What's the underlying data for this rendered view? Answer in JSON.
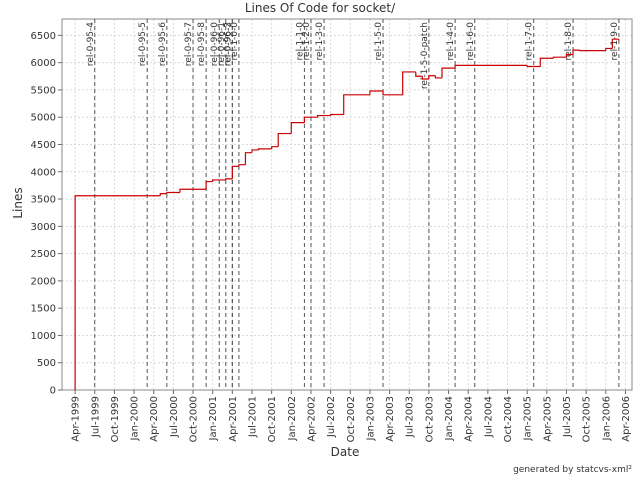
{
  "chart_data": {
    "type": "line",
    "step": true,
    "title": "Lines Of Code for socket/",
    "xlabel": "Date",
    "ylabel": "Lines",
    "footer": "generated by statcvs-xml²",
    "color": "#cc0000",
    "grid": true,
    "x": [
      "1999-04",
      "1999-04",
      "2000-05",
      "2000-06",
      "2000-08",
      "2000-12",
      "2001-01",
      "2001-03",
      "2001-04",
      "2001-05",
      "2001-06",
      "2001-07",
      "2001-08",
      "2001-10",
      "2001-11",
      "2002-01",
      "2002-01",
      "2002-03",
      "2002-05",
      "2002-07",
      "2002-09",
      "2003-01",
      "2003-03",
      "2003-06",
      "2003-08",
      "2003-09",
      "2003-10",
      "2003-11",
      "2003-12",
      "2004-02",
      "2005-01",
      "2005-03",
      "2005-05",
      "2005-07",
      "2005-08",
      "2005-09",
      "2006-01",
      "2006-02",
      "2006-03"
    ],
    "values": [
      0,
      3560,
      3600,
      3620,
      3680,
      3820,
      3850,
      3870,
      4100,
      4130,
      4350,
      4400,
      4420,
      4460,
      4700,
      4780,
      4900,
      5000,
      5030,
      5050,
      5410,
      5480,
      5410,
      5830,
      5750,
      5700,
      5760,
      5720,
      5900,
      5950,
      5930,
      6080,
      6100,
      6150,
      6230,
      6220,
      6260,
      6430,
      6400
    ],
    "xlim": [
      "1999-02",
      "2006-05"
    ],
    "xticks": [
      {
        "value": "1999-04",
        "label": "Apr-1999"
      },
      {
        "value": "1999-07",
        "label": "Jul-1999"
      },
      {
        "value": "1999-10",
        "label": "Oct-1999"
      },
      {
        "value": "2000-01",
        "label": "Jan-2000"
      },
      {
        "value": "2000-04",
        "label": "Apr-2000"
      },
      {
        "value": "2000-07",
        "label": "Jul-2000"
      },
      {
        "value": "2000-10",
        "label": "Oct-2000"
      },
      {
        "value": "2001-01",
        "label": "Jan-2001"
      },
      {
        "value": "2001-04",
        "label": "Apr-2001"
      },
      {
        "value": "2001-07",
        "label": "Jul-2001"
      },
      {
        "value": "2001-10",
        "label": "Oct-2001"
      },
      {
        "value": "2002-01",
        "label": "Jan-2002"
      },
      {
        "value": "2002-04",
        "label": "Apr-2002"
      },
      {
        "value": "2002-07",
        "label": "Jul-2002"
      },
      {
        "value": "2002-10",
        "label": "Oct-2002"
      },
      {
        "value": "2003-01",
        "label": "Jan-2003"
      },
      {
        "value": "2003-04",
        "label": "Apr-2003"
      },
      {
        "value": "2003-07",
        "label": "Jul-2003"
      },
      {
        "value": "2003-10",
        "label": "Oct-2003"
      },
      {
        "value": "2004-01",
        "label": "Jan-2004"
      },
      {
        "value": "2004-04",
        "label": "Apr-2004"
      },
      {
        "value": "2004-07",
        "label": "Jul-2004"
      },
      {
        "value": "2004-10",
        "label": "Oct-2004"
      },
      {
        "value": "2005-01",
        "label": "Jan-2005"
      },
      {
        "value": "2005-04",
        "label": "Apr-2005"
      },
      {
        "value": "2005-07",
        "label": "Jul-2005"
      },
      {
        "value": "2005-10",
        "label": "Oct-2005"
      },
      {
        "value": "2006-01",
        "label": "Jan-2006"
      },
      {
        "value": "2006-04",
        "label": "Apr-2006"
      }
    ],
    "ylim": [
      0,
      6800
    ],
    "yticks": [
      0,
      500,
      1000,
      1500,
      2000,
      2500,
      3000,
      3500,
      4000,
      4500,
      5000,
      5500,
      6000,
      6500
    ],
    "markers": [
      {
        "x": "1999-07",
        "label": "rel-0-95-4"
      },
      {
        "x": "2000-03",
        "label": "rel-0-95-5"
      },
      {
        "x": "2000-06",
        "label": "rel-0-95-6"
      },
      {
        "x": "2000-10",
        "label": "rel-0-95-7"
      },
      {
        "x": "2000-12",
        "label": "rel-0-95-8"
      },
      {
        "x": "2001-02",
        "label": "rel-0-96-0"
      },
      {
        "x": "2001-03",
        "label": "rel-0-96-1"
      },
      {
        "x": "2001-04",
        "label": "rel-0-96-2"
      },
      {
        "x": "2001-04",
        "label": "rel-0-96-3"
      },
      {
        "x": "2001-05",
        "label": "rel-1-0-0"
      },
      {
        "x": "2002-03",
        "label": "rel-1-1-0"
      },
      {
        "x": "2002-04",
        "label": "rel-1-2-0"
      },
      {
        "x": "2002-06",
        "label": "rel-1-3-0"
      },
      {
        "x": "2003-03",
        "label": "rel-1-5-0"
      },
      {
        "x": "2003-10",
        "label": "rel-1-5-0-patch"
      },
      {
        "x": "2004-02",
        "label": "rel-1-4-0"
      },
      {
        "x": "2004-05",
        "label": "rel-1-6-0"
      },
      {
        "x": "2005-02",
        "label": "rel-1-7-0"
      },
      {
        "x": "2005-08",
        "label": "rel-1-8-0"
      },
      {
        "x": "2006-03",
        "label": "rel-1-9-0"
      }
    ]
  }
}
